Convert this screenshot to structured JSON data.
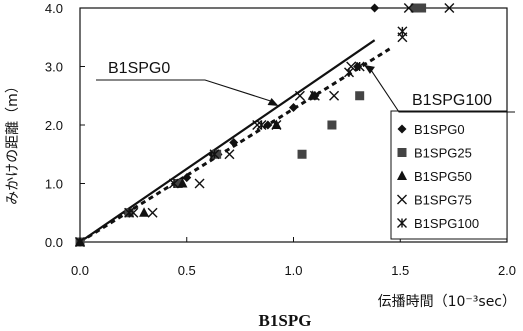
{
  "chart_data": {
    "type": "scatter",
    "caption": "B1SPG",
    "xlabel": "伝播時間（10⁻³sec）",
    "ylabel": "みかけの距離（m）",
    "xlim": [
      0.0,
      2.0
    ],
    "ylim": [
      0.0,
      4.0
    ],
    "x_ticks": [
      "0.0",
      "0.5",
      "1.0",
      "1.5",
      "2.0"
    ],
    "y_ticks": [
      "0.0",
      "1.0",
      "2.0",
      "3.0",
      "4.0"
    ],
    "legend_position": "right",
    "series": [
      {
        "name": "B1SPG0",
        "marker": "diamond",
        "x": [
          0.0,
          0.22,
          0.45,
          0.5,
          0.62,
          0.72,
          0.88,
          1.0,
          1.1,
          1.3,
          1.38
        ],
        "y": [
          0.0,
          0.5,
          1.0,
          1.1,
          1.5,
          1.7,
          2.0,
          2.3,
          2.5,
          3.0,
          4.0
        ]
      },
      {
        "name": "B1SPG25",
        "marker": "square",
        "x": [
          0.0,
          0.23,
          0.46,
          0.64,
          1.04,
          1.18,
          1.31,
          1.57,
          1.6
        ],
        "y": [
          0.0,
          0.5,
          1.0,
          1.5,
          1.5,
          2.0,
          2.5,
          4.0,
          4.0
        ]
      },
      {
        "name": "B1SPG50",
        "marker": "triangle",
        "x": [
          0.0,
          0.3,
          0.48,
          0.92,
          1.09
        ],
        "y": [
          0.0,
          0.5,
          1.0,
          2.0,
          2.5
        ]
      },
      {
        "name": "B1SPG75",
        "marker": "x",
        "x": [
          0.0,
          0.25,
          0.34,
          0.56,
          0.7,
          0.83,
          0.92,
          1.03,
          1.19,
          1.27,
          1.51,
          1.54,
          1.73
        ],
        "y": [
          0.0,
          0.5,
          0.5,
          1.0,
          1.5,
          2.0,
          2.0,
          2.5,
          2.5,
          3.0,
          3.5,
          4.0,
          4.0
        ]
      },
      {
        "name": "B1SPG100",
        "marker": "asterisk",
        "x": [
          0.0,
          0.23,
          0.44,
          0.63,
          0.85,
          1.1,
          1.26,
          1.31,
          1.51
        ],
        "y": [
          0.0,
          0.5,
          1.0,
          1.5,
          2.0,
          2.5,
          2.9,
          3.0,
          3.6
        ]
      }
    ],
    "fit_lines": [
      {
        "name": "B1SPG0",
        "style": "solid",
        "x": [
          0.0,
          1.38
        ],
        "y": [
          0.0,
          3.45
        ]
      },
      {
        "name": "B1SPG100",
        "style": "dashed",
        "x": [
          0.0,
          1.45
        ],
        "y": [
          0.0,
          3.3
        ]
      }
    ],
    "annotations": [
      {
        "label": "B1SPG0",
        "points_to": "B1SPG0"
      },
      {
        "label": "B1SPG100",
        "points_to": "B1SPG100"
      }
    ]
  }
}
